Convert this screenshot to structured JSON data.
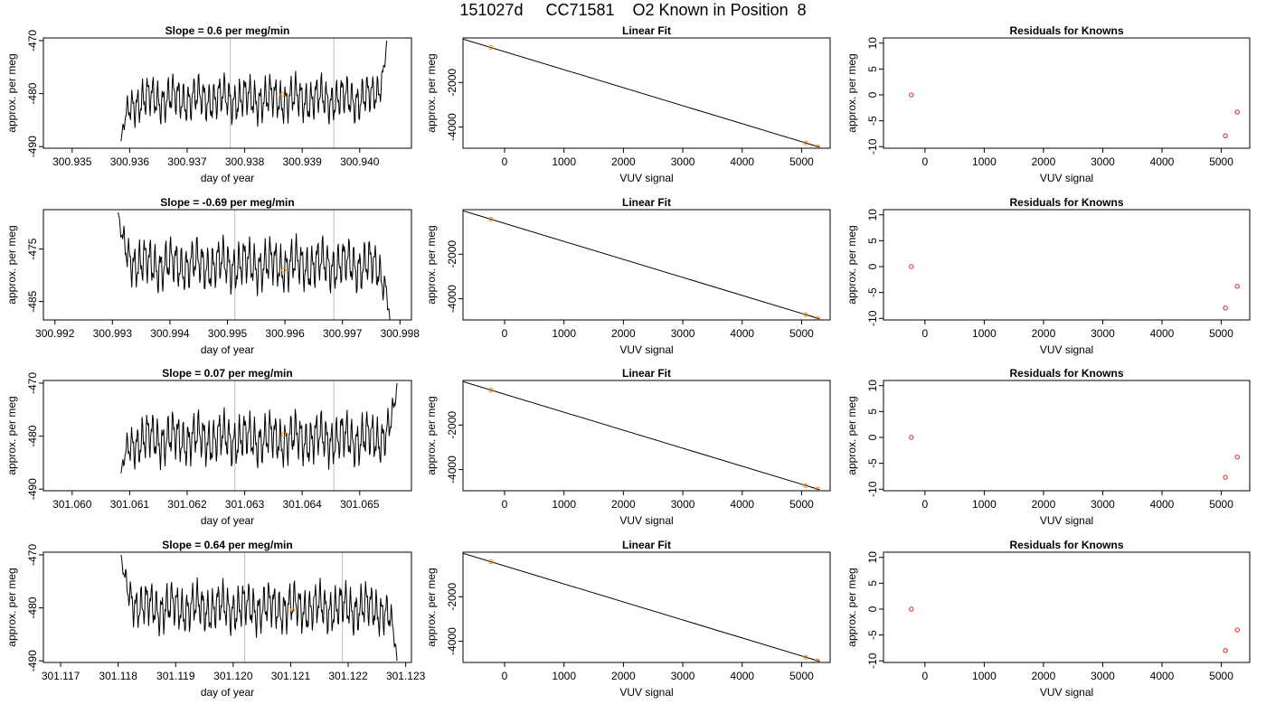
{
  "figure": {
    "title": "151027d     CC71581    O2 Known in Position  8",
    "colors": {
      "trace": "#000000",
      "marker": "#ff8c00",
      "residual": "#dd2222",
      "vline": "#bbbbbb",
      "fitline": "#000000"
    }
  },
  "chart_data": [
    {
      "type": "line",
      "panel": "timeseries",
      "row": 1,
      "title": "Slope =  0.6  per meg/min",
      "xlabel": "day of year",
      "ylabel": "approx. per meg",
      "xlim": [
        300.9345,
        300.9409
      ],
      "ylim": [
        -490.3,
        -469.5
      ],
      "xticks": [
        "300.935",
        "300.936",
        "300.937",
        "300.938",
        "300.939",
        "300.940"
      ],
      "yticks": [
        "-490",
        "-480",
        "-470"
      ],
      "trace": {
        "x_start": 300.93585,
        "x_end": 300.94047,
        "start_y": -489,
        "end_y": -470,
        "base": -481,
        "amp": 3.5,
        "cycles": 52,
        "phase": 0.3
      },
      "vlines": [
        300.93775,
        300.93955
      ],
      "marker": {
        "x": 300.93865,
        "y": -480.2
      }
    },
    {
      "type": "scatter",
      "panel": "linear_fit",
      "row": 1,
      "title": "Linear Fit",
      "xlabel": "VUV signal",
      "ylabel": "approx. per meg",
      "xlim": [
        -700,
        5480
      ],
      "ylim": [
        -4950,
        0
      ],
      "xticks": [
        "0",
        "1000",
        "2000",
        "3000",
        "4000",
        "5000"
      ],
      "yticks": [
        "-4000",
        "-2000"
      ],
      "points": [
        {
          "x": -230,
          "y": -430
        },
        {
          "x": 5070,
          "y": -4720
        },
        {
          "x": 5270,
          "y": -4880
        }
      ],
      "fit_line": [
        {
          "x": -700,
          "y": -50
        },
        {
          "x": 5300,
          "y": -4900
        }
      ]
    },
    {
      "type": "scatter",
      "panel": "residuals",
      "row": 1,
      "title": "Residuals for Knowns",
      "xlabel": "VUV signal",
      "ylabel": "approx. per meg",
      "xlim": [
        -700,
        5480
      ],
      "ylim": [
        -10.3,
        11
      ],
      "xticks": [
        "0",
        "1000",
        "2000",
        "3000",
        "4000",
        "5000"
      ],
      "yticks": [
        "-10",
        "-5",
        "0",
        "5",
        "10"
      ],
      "points": [
        {
          "x": -230,
          "y": 0
        },
        {
          "x": 5070,
          "y": -7.9
        },
        {
          "x": 5270,
          "y": -3.3
        }
      ]
    },
    {
      "type": "line",
      "panel": "timeseries",
      "row": 2,
      "title": "Slope =  -0.69  per meg/min",
      "xlabel": "day of year",
      "ylabel": "approx. per meg",
      "xlim": [
        300.9918,
        300.9982
      ],
      "ylim": [
        -488.5,
        -467.5
      ],
      "xticks": [
        "300.992",
        "300.993",
        "300.994",
        "300.995",
        "300.996",
        "300.997",
        "300.998"
      ],
      "yticks": [
        "-485",
        "-475"
      ],
      "trace": {
        "x_start": 300.9931,
        "x_end": 300.99783,
        "start_y": -468,
        "end_y": -489,
        "base": -478,
        "amp": 4.0,
        "cycles": 52,
        "phase": 1.1
      },
      "vlines": [
        300.99513,
        300.99685
      ],
      "marker": {
        "x": 300.99598,
        "y": -479.0
      }
    },
    {
      "type": "scatter",
      "panel": "linear_fit",
      "row": 2,
      "title": "Linear Fit",
      "xlabel": "VUV signal",
      "ylabel": "approx. per meg",
      "xlim": [
        -700,
        5480
      ],
      "ylim": [
        -4950,
        0
      ],
      "xticks": [
        "0",
        "1000",
        "2000",
        "3000",
        "4000",
        "5000"
      ],
      "yticks": [
        "-4000",
        "-2000"
      ],
      "points": [
        {
          "x": -230,
          "y": -430
        },
        {
          "x": 5070,
          "y": -4720
        },
        {
          "x": 5270,
          "y": -4880
        }
      ],
      "fit_line": [
        {
          "x": -700,
          "y": -50
        },
        {
          "x": 5300,
          "y": -4900
        }
      ]
    },
    {
      "type": "scatter",
      "panel": "residuals",
      "row": 2,
      "title": "Residuals for Knowns",
      "xlabel": "VUV signal",
      "ylabel": "approx. per meg",
      "xlim": [
        -700,
        5480
      ],
      "ylim": [
        -10.3,
        11
      ],
      "xticks": [
        "0",
        "1000",
        "2000",
        "3000",
        "4000",
        "5000"
      ],
      "yticks": [
        "-10",
        "-5",
        "0",
        "5",
        "10"
      ],
      "points": [
        {
          "x": -230,
          "y": 0
        },
        {
          "x": 5070,
          "y": -8.0
        },
        {
          "x": 5270,
          "y": -3.8
        }
      ]
    },
    {
      "type": "line",
      "panel": "timeseries",
      "row": 3,
      "title": "Slope =  0.07  per meg/min",
      "xlabel": "day of year",
      "ylabel": "approx. per meg",
      "xlim": [
        301.0595,
        301.0659
      ],
      "ylim": [
        -490.3,
        -469.5
      ],
      "xticks": [
        "301.060",
        "301.061",
        "301.062",
        "301.063",
        "301.064",
        "301.065"
      ],
      "yticks": [
        "-490",
        "-480",
        "-470"
      ],
      "trace": {
        "x_start": 301.06085,
        "x_end": 301.06565,
        "start_y": -487,
        "end_y": -470,
        "base": -480.5,
        "amp": 4.0,
        "cycles": 54,
        "phase": 0.6
      },
      "vlines": [
        301.06283,
        301.06455
      ],
      "marker": {
        "x": 301.06368,
        "y": -479.6
      }
    },
    {
      "type": "scatter",
      "panel": "linear_fit",
      "row": 3,
      "title": "Linear Fit",
      "xlabel": "VUV signal",
      "ylabel": "approx. per meg",
      "xlim": [
        -700,
        5480
      ],
      "ylim": [
        -4950,
        0
      ],
      "xticks": [
        "0",
        "1000",
        "2000",
        "3000",
        "4000",
        "5000"
      ],
      "yticks": [
        "-4000",
        "-2000"
      ],
      "points": [
        {
          "x": -230,
          "y": -430
        },
        {
          "x": 5070,
          "y": -4720
        },
        {
          "x": 5270,
          "y": -4880
        }
      ],
      "fit_line": [
        {
          "x": -700,
          "y": -50
        },
        {
          "x": 5300,
          "y": -4900
        }
      ]
    },
    {
      "type": "scatter",
      "panel": "residuals",
      "row": 3,
      "title": "Residuals for Knowns",
      "xlabel": "VUV signal",
      "ylabel": "approx. per meg",
      "xlim": [
        -700,
        5480
      ],
      "ylim": [
        -10.3,
        11
      ],
      "xticks": [
        "0",
        "1000",
        "2000",
        "3000",
        "4000",
        "5000"
      ],
      "yticks": [
        "-10",
        "-5",
        "0",
        "5",
        "10"
      ],
      "points": [
        {
          "x": -230,
          "y": 0
        },
        {
          "x": 5070,
          "y": -7.7
        },
        {
          "x": 5270,
          "y": -3.8
        }
      ]
    },
    {
      "type": "line",
      "panel": "timeseries",
      "row": 4,
      "title": "Slope =  0.64  per meg/min",
      "xlabel": "day of year",
      "ylabel": "approx. per meg",
      "xlim": [
        301.1167,
        301.1231
      ],
      "ylim": [
        -490.3,
        -469.5
      ],
      "xticks": [
        "301.117",
        "301.118",
        "301.119",
        "301.120",
        "301.121",
        "301.122",
        "301.123"
      ],
      "yticks": [
        "-490",
        "-480",
        "-470"
      ],
      "trace": {
        "x_start": 301.11805,
        "x_end": 301.12285,
        "start_y": -470,
        "end_y": -490,
        "base": -480,
        "amp": 3.8,
        "cycles": 54,
        "phase": 2.0
      },
      "vlines": [
        301.1202,
        301.1219
      ],
      "marker": {
        "x": 301.12103,
        "y": -480.4
      }
    },
    {
      "type": "scatter",
      "panel": "linear_fit",
      "row": 4,
      "title": "Linear Fit",
      "xlabel": "VUV signal",
      "ylabel": "approx. per meg",
      "xlim": [
        -700,
        5480
      ],
      "ylim": [
        -4950,
        0
      ],
      "xticks": [
        "0",
        "1000",
        "2000",
        "3000",
        "4000",
        "5000"
      ],
      "yticks": [
        "-4000",
        "-2000"
      ],
      "points": [
        {
          "x": -230,
          "y": -430
        },
        {
          "x": 5070,
          "y": -4720
        },
        {
          "x": 5270,
          "y": -4880
        }
      ],
      "fit_line": [
        {
          "x": -700,
          "y": -50
        },
        {
          "x": 5300,
          "y": -4900
        }
      ]
    },
    {
      "type": "scatter",
      "panel": "residuals",
      "row": 4,
      "title": "Residuals for Knowns",
      "xlabel": "VUV signal",
      "ylabel": "approx. per meg",
      "xlim": [
        -700,
        5480
      ],
      "ylim": [
        -10.3,
        11
      ],
      "xticks": [
        "0",
        "1000",
        "2000",
        "3000",
        "4000",
        "5000"
      ],
      "yticks": [
        "-10",
        "-5",
        "0",
        "5",
        "10"
      ],
      "points": [
        {
          "x": -230,
          "y": 0
        },
        {
          "x": 5070,
          "y": -8.0
        },
        {
          "x": 5270,
          "y": -4.0
        }
      ]
    }
  ]
}
